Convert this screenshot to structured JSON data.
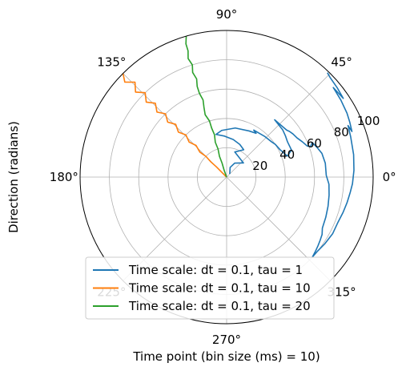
{
  "chart_data": {
    "type": "polar-line",
    "xlabel": "Time point (bin size (ms) = 10)",
    "ylabel": "Direction (radians)",
    "theta_ticks": [
      "0°",
      "45°",
      "90°",
      "135°",
      "180°",
      "225°",
      "270°",
      "315°"
    ],
    "r_ticks": [
      "20",
      "40",
      "60",
      "80",
      "100"
    ],
    "rlim": [
      0,
      100
    ],
    "grid": true,
    "legend": "lower-center",
    "series": [
      {
        "name": "Time scale: dt = 0.1, tau = 1",
        "color": "#1f77b4",
        "points": [
          {
            "r": 3,
            "deg": 45
          },
          {
            "r": 7,
            "deg": 70
          },
          {
            "r": 11,
            "deg": 60
          },
          {
            "r": 15,
            "deg": 40
          },
          {
            "r": 18,
            "deg": 72
          },
          {
            "r": 22,
            "deg": 58
          },
          {
            "r": 24,
            "deg": 68
          },
          {
            "r": 26,
            "deg": 80
          },
          {
            "r": 28,
            "deg": 93
          },
          {
            "r": 30,
            "deg": 104
          },
          {
            "r": 32,
            "deg": 96
          },
          {
            "r": 34,
            "deg": 80
          },
          {
            "r": 35,
            "deg": 64
          },
          {
            "r": 36,
            "deg": 56
          },
          {
            "r": 37,
            "deg": 60
          },
          {
            "r": 38,
            "deg": 47
          },
          {
            "r": 39,
            "deg": 38
          },
          {
            "r": 40,
            "deg": 34
          },
          {
            "r": 41,
            "deg": 27
          },
          {
            "r": 42,
            "deg": 24
          },
          {
            "r": 43,
            "deg": 21
          },
          {
            "r": 44,
            "deg": 19
          },
          {
            "r": 46,
            "deg": 21
          },
          {
            "r": 47,
            "deg": 22
          },
          {
            "r": 48,
            "deg": 22
          },
          {
            "r": 48,
            "deg": 30
          },
          {
            "r": 49,
            "deg": 35
          },
          {
            "r": 50,
            "deg": 40
          },
          {
            "r": 51,
            "deg": 50
          },
          {
            "r": 52,
            "deg": 38
          },
          {
            "r": 53,
            "deg": 36
          },
          {
            "r": 54,
            "deg": 33
          },
          {
            "r": 55,
            "deg": 29
          },
          {
            "r": 57,
            "deg": 25
          },
          {
            "r": 59,
            "deg": 21
          },
          {
            "r": 61,
            "deg": 20
          },
          {
            "r": 63,
            "deg": 22
          },
          {
            "r": 65,
            "deg": 18
          },
          {
            "r": 67,
            "deg": 14
          },
          {
            "r": 68,
            "deg": 8
          },
          {
            "r": 68,
            "deg": 1
          },
          {
            "r": 70,
            "deg": -4
          },
          {
            "r": 71,
            "deg": -10
          },
          {
            "r": 72,
            "deg": -16
          },
          {
            "r": 73,
            "deg": -22
          },
          {
            "r": 74,
            "deg": -28
          },
          {
            "r": 76,
            "deg": -31
          },
          {
            "r": 77,
            "deg": -34
          },
          {
            "r": 78,
            "deg": -37
          },
          {
            "r": 79,
            "deg": -40
          },
          {
            "r": 80,
            "deg": -43
          },
          {
            "r": 80,
            "deg": -39
          },
          {
            "r": 81,
            "deg": -34
          },
          {
            "r": 82,
            "deg": -28
          },
          {
            "r": 82,
            "deg": -22
          },
          {
            "r": 83,
            "deg": -17
          },
          {
            "r": 84,
            "deg": -12
          },
          {
            "r": 85,
            "deg": -7
          },
          {
            "r": 86,
            "deg": -3
          },
          {
            "r": 87,
            "deg": 3
          },
          {
            "r": 88,
            "deg": 10
          },
          {
            "r": 89,
            "deg": 18
          },
          {
            "r": 90,
            "deg": 23
          },
          {
            "r": 91,
            "deg": 20
          },
          {
            "r": 92,
            "deg": 24
          },
          {
            "r": 93,
            "deg": 28
          },
          {
            "r": 94,
            "deg": 34
          },
          {
            "r": 95,
            "deg": 40
          },
          {
            "r": 96,
            "deg": 34
          },
          {
            "r": 97,
            "deg": 39
          },
          {
            "r": 98,
            "deg": 44
          },
          {
            "r": 99,
            "deg": 46
          }
        ]
      },
      {
        "name": "Time scale: dt = 0.1, tau = 10",
        "color": "#ff7f0e",
        "points": [
          {
            "r": 0,
            "deg": 135
          },
          {
            "r": 5,
            "deg": 135
          },
          {
            "r": 10,
            "deg": 135
          },
          {
            "r": 15,
            "deg": 136
          },
          {
            "r": 20,
            "deg": 135
          },
          {
            "r": 25,
            "deg": 137
          },
          {
            "r": 30,
            "deg": 134
          },
          {
            "r": 35,
            "deg": 137
          },
          {
            "r": 40,
            "deg": 134
          },
          {
            "r": 45,
            "deg": 137
          },
          {
            "r": 50,
            "deg": 134
          },
          {
            "r": 55,
            "deg": 137
          },
          {
            "r": 60,
            "deg": 134
          },
          {
            "r": 65,
            "deg": 137
          },
          {
            "r": 70,
            "deg": 134
          },
          {
            "r": 75,
            "deg": 137
          },
          {
            "r": 80,
            "deg": 134
          },
          {
            "r": 85,
            "deg": 137
          },
          {
            "r": 90,
            "deg": 134
          },
          {
            "r": 95,
            "deg": 137
          },
          {
            "r": 100,
            "deg": 135
          }
        ]
      },
      {
        "name": "Time scale: dt = 0.1, tau = 20",
        "color": "#2ca02c",
        "points": [
          {
            "r": 0,
            "deg": 110
          },
          {
            "r": 5,
            "deg": 110
          },
          {
            "r": 10,
            "deg": 108
          },
          {
            "r": 15,
            "deg": 109
          },
          {
            "r": 20,
            "deg": 107
          },
          {
            "r": 25,
            "deg": 108
          },
          {
            "r": 30,
            "deg": 106
          },
          {
            "r": 35,
            "deg": 107
          },
          {
            "r": 40,
            "deg": 107
          },
          {
            "r": 45,
            "deg": 109
          },
          {
            "r": 50,
            "deg": 108
          },
          {
            "r": 55,
            "deg": 107
          },
          {
            "r": 60,
            "deg": 108
          },
          {
            "r": 65,
            "deg": 108
          },
          {
            "r": 70,
            "deg": 107
          },
          {
            "r": 75,
            "deg": 108
          },
          {
            "r": 80,
            "deg": 107
          },
          {
            "r": 85,
            "deg": 108
          },
          {
            "r": 90,
            "deg": 107
          },
          {
            "r": 95,
            "deg": 107
          },
          {
            "r": 100,
            "deg": 106
          }
        ]
      }
    ]
  }
}
